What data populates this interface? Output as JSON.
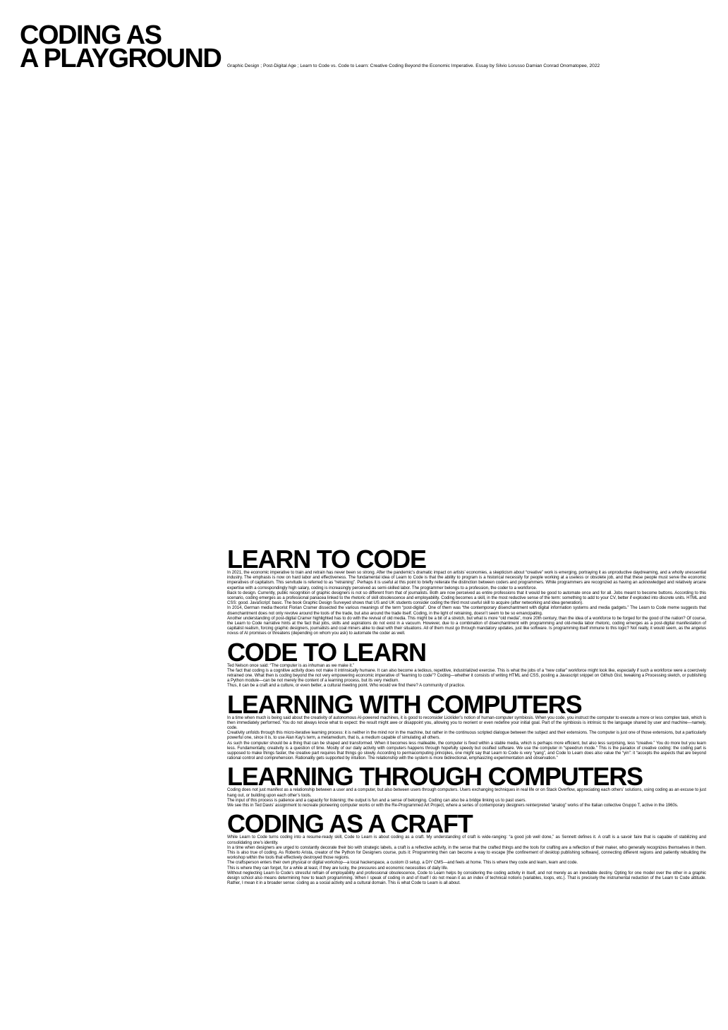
{
  "title": {
    "line1": "CODING AS",
    "line2": "A PLAYGROUND"
  },
  "subtitle": "Graphic Design ; Post-Digital Age ; Learn to Code vs. Code to Learn: Creative Coding Beyond the Economic Imperative. Essay by Silvio Lorusso Damian Conrad Onomatopee, 2022",
  "sections": [
    {
      "heading": "LEARN TO CODE",
      "paragraphs": [
        "In 2021, the economic imperative to train and retrain has never been so strong. After the pandemic’s dramatic impact on artists’ economies, a skepticism about “creative” work is emerging, portraying it as unproductive daydreaming, and a wholly unessential industry. The emphasis is now on hard labor and effectiveness. The fundamental idea of Learn to Code is that the ability to program is a historical necessity for people working at a useless or obsolete job, and that these people must serve the economic imperatives of capitalism. This servitude is referred to as “retraining”. Perhaps it is useful at this point to briefly reiterate the distinction between coders and programmers. While programmers are recognized as having an acknowledged and relatively arcane expertise with a correspondingly high salary, coding is increasingly perceived as semi-skilled labor. The programmer belongs to a profession, the coder to a workforce.",
        "Back to design. Currently, public recognition of graphic designers is not so different from that of journalists. Both are now perceived as entire professions that it would be good to automate once and for all. Jobs meant to become buttons. According to this scenario, coding emerges as a professional panacea linked to the rhetoric of skill obsolescence and employability. Coding becomes a skill, in the most reductive sense of the term: something to add to your CV, better if exploded into discrete units. HTML and CSS: good. JavaScript: basic. The book Graphic Design Surveyed shows that US and UK students consider coding the third most useful skill to acquire (after networking and idea generation).",
        "In 2014, German media theorist Florian Cramer dissected the various meanings of the term “post-digital”. One of them was “the contemporary disenchantment with digital information systems and media gadgets.” The Learn to Code meme suggests that disenchantment does not only revolve around the tools of the trade, but also around the trade itself. Coding, in the light of retraining, doesn’t seem to be so emancipating.",
        "Another understanding of post-digital Cramer highlighted has to do with the revival of old media. This might be a bit of a stretch, but what is more “old media”, more 20th century, than the idea of a workforce to be forged for the good of the nation? Of course, the Learn to Code narrative hints at the fact that jobs, skills and aspirations do not exist in a vacuum. However, due to a combination of disenchantment with programming and old-media labor rhetoric, coding emerges as a post-digital manifestation of capitalist realism, forcing graphic designers, journalists and coal miners alike to deal with their situations. All of them must go through mandatory updates, just like software. Is programming itself immune to this logic? Not really, it would seem, as the angelus novus of AI promises or threatens (depending on whom you ask) to automate the coder as well."
      ]
    },
    {
      "heading": "CODE TO LEARN",
      "paragraphs": [
        "Ted Nelson once said: “The computer is as inhuman as we make it.”",
        "The fact that coding is a cognitive activity does not make it intrinsically humane. It can also become a tedious, repetitive, industrialized exercise. This is what the jobs of a “new collar” workforce might look like, especially if such a workforce were a coercively retrained one. What then is coding beyond the not very empowering economic imperative of “learning to code”? Coding—whether it consists of writing HTML and CSS, posting a Javascript snippet on Github Gist, tweaking a Processing sketch, or publishing a Python module—can be not merely the content of a learning process, but its very medium.",
        "Thus, it can be a craft and a culture, or even better, a cultural meeting point. Who would we find there? A community of practice."
      ]
    },
    {
      "heading": "LEARNING WITH COMPUTERS",
      "paragraphs": [
        "In a time when much is being said about the creativity of autonomous AI-powered machines, it is good to reconsider Licklider’s notion of human-computer symbiosis. When you code, you instruct the computer to execute a more or less complex task, which is then immediately performed. You do not always know what to expect: the result might awe or disappoint you, allowing you to reorient or even redefine your initial goal. Part of the symbiosis is intrinsic to the language shared by user and machine—namely, code.",
        "Creativity unfolds through this micro-iterative learning process: it is neither in the mind nor in the machine, but rather in the continuous scripted dialogue between the subject and their extensions. The computer is just one of those extensions, but a particularly powerful one, since it is, to use Alan Kay’s term, a metamedium, that is, a medium capable of simulating all others.",
        "As such the computer should be a thing that can be shaped and transformed. When it becomes less malleable, the computer is fixed within a stable media, which is perhaps more efficient, but also less surprising, less “creative.” You do more but you learn less. Fundamentally, creativity is a question of time. Mostly of our daily activity with computers happens through hopefully speedy but ossified software. We use the computer in “speedrun mode.” This is the paradox of creative coding: the coding part is supposed to make things faster, the creative part requires that things go slowly. According to permacomputing principles, one might say that Learn to Code is very “yang”, and Code to Learn does also value the “yin”: it “accepts the aspects that are beyond rational control and comprehension. Rationality gets supported by intuition. The relationship with the system is more bidirectional, emphasizing experimentation and observation.”"
      ]
    },
    {
      "heading": "LEARNING THROUGH COMPUTERS",
      "paragraphs": [
        "Coding does not just manifest as a relationship between a user and a computer, but also between users through computers. Users exchanging techniques in real life or on Stack Overflow, appreciating each others’ solutions, using coding as an excuse to just hang out, or building upon each other’s tools.",
        "The input of this process is patience and a capacity for listening; the output is fun and a sense of belonging. Coding can also be a bridge linking us to past users.",
        "We see this in Ted Davis’ assignment to recreate pioneering computer works or with the Re-Programmed Art Project, where a series of contemporary designers reinterpreted “analog” works of the Italian collective Gruppo T, active in the 1960s."
      ]
    },
    {
      "heading": "CODING AS A CRAFT",
      "paragraphs": [
        "While Learn to Code turns coding into a resume-ready skill, Code to Learn is about coding as a craft. My understanding of craft is wide-ranging: “a good job well done,” as Sennett defines it. A craft is a savoir faire that is capable of stabilizing and consolidating one’s identity.",
        "In a time when designers are urged to constantly decorate their bio with strategic labels, a craft is a reflective activity, in the sense that the crafted things and the tools for crafting are a reflection of their maker, who generally recognizes themselves in them. This is also true of coding. As Roberto Arista, creator of the Python for Designers course, puts it: Programming then can become a way to escape [the confinement of desktop publishing software], connecting different regions and patiently rebuilding the workshop within the tools that effectively destroyed those regions.",
        "The craftsperson enters their own physical or digital workshop—a local hackerspace, a custom i3 setup, a DIY CMS—and feels at home. This is where they code and learn, learn and code.",
        "This is where they can forget, for a while at least, if they are lucky, the pressures and economic necessities of daily life.",
        "Without neglecting Learn to Code’s stressful refrain of employability and professional obsolescence, Code to Learn helps by considering the coding activity in itself, and not merely as an inevitable destiny. Opting for one model over the other in a graphic design school also means determining how to teach programming. When I speak of coding in and of itself I do not mean it as an index of technical notions (variables, loops, etc.). That is precisely the instrumental reduction of the Learn to Code attitude. Rather, I mean it in a broader sense: coding as a social activity and a cultural domain. This is what Code to Learn is all about."
      ]
    }
  ]
}
